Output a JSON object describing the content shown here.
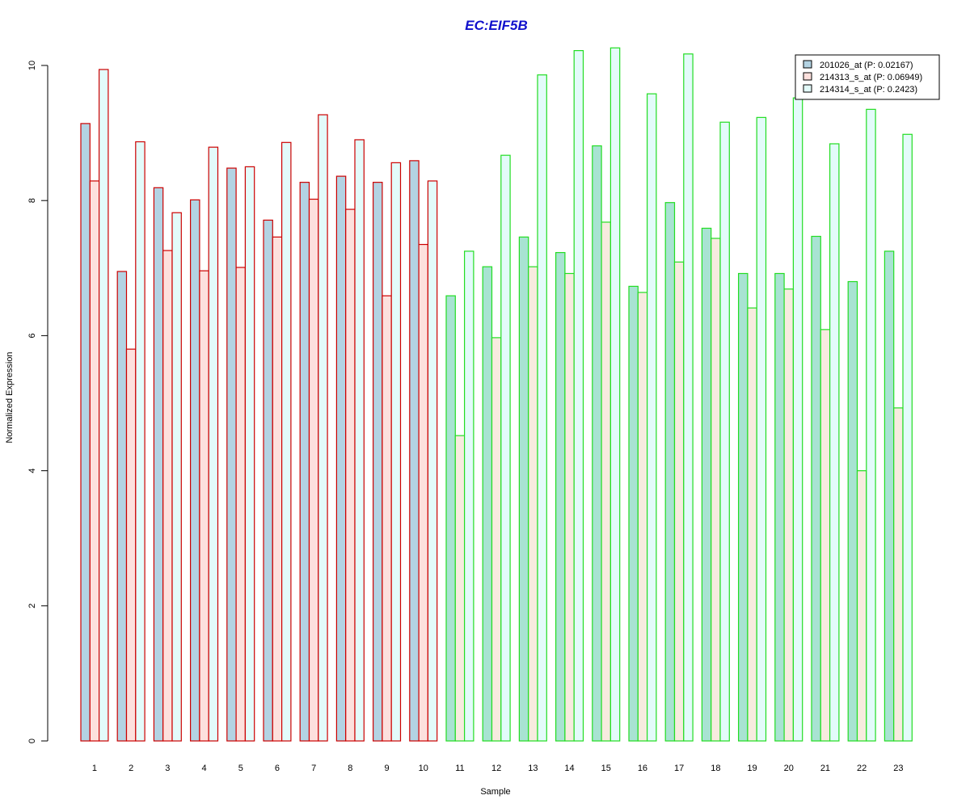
{
  "chart_data": {
    "type": "bar",
    "title": "EC:EIF5B",
    "xlabel": "Sample",
    "ylabel": "Normalized Expression",
    "ylim": [
      0,
      10.5
    ],
    "yticks": [
      0,
      2,
      4,
      6,
      8,
      10
    ],
    "grid": false,
    "legend_position": "top-right",
    "categories": [
      "1",
      "2",
      "3",
      "4",
      "5",
      "6",
      "7",
      "8",
      "9",
      "10",
      "11",
      "12",
      "13",
      "14",
      "15",
      "16",
      "17",
      "18",
      "19",
      "20",
      "21",
      "22",
      "23"
    ],
    "group_border_colors": {
      "group_1": "#cc0000",
      "group_2": "#22dd22",
      "group_1_samples": 10
    },
    "series": [
      {
        "name": "201026_at (P: 0.02167)",
        "colors": {
          "group_1": "#b3d3e3",
          "group_2": "#a8e3d2"
        },
        "values": [
          9.14,
          6.95,
          8.19,
          8.01,
          8.48,
          7.71,
          8.27,
          8.36,
          8.27,
          8.59,
          6.59,
          7.02,
          7.46,
          7.23,
          8.81,
          6.73,
          7.97,
          7.59,
          6.92,
          6.92,
          7.47,
          6.8,
          7.25
        ]
      },
      {
        "name": "214313_s_at (P: 0.06949)",
        "colors": {
          "group_1": "#fde0dd",
          "group_2": "#f7ebdf"
        },
        "values": [
          8.29,
          5.8,
          7.26,
          6.96,
          7.01,
          7.46,
          8.02,
          7.87,
          6.59,
          7.35,
          4.52,
          5.97,
          7.02,
          6.92,
          7.68,
          6.64,
          7.09,
          7.44,
          6.41,
          6.69,
          6.09,
          4.0,
          4.93
        ]
      },
      {
        "name": "214314_s_at (P: 0.2423)",
        "colors": {
          "group_1": "#e3fbfa",
          "group_2": "#e3fbfa"
        },
        "values": [
          9.94,
          8.87,
          7.82,
          8.79,
          8.5,
          8.86,
          9.27,
          8.9,
          8.56,
          8.29,
          7.25,
          8.67,
          9.86,
          10.22,
          10.26,
          9.58,
          10.17,
          9.16,
          9.23,
          9.52,
          8.84,
          9.35,
          8.98
        ]
      }
    ]
  }
}
